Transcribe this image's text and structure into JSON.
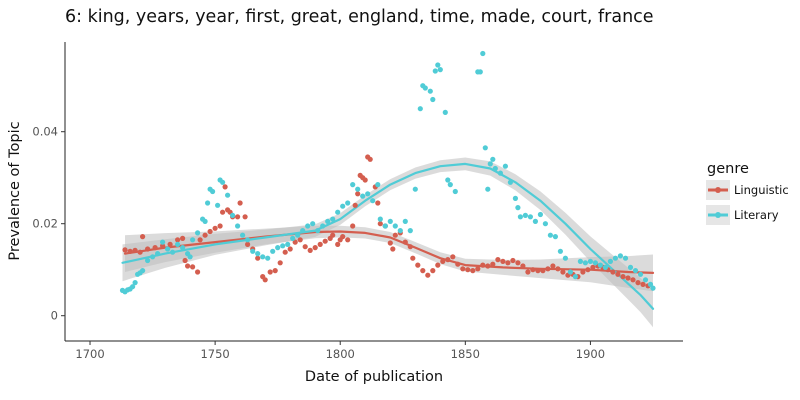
{
  "chart_data": {
    "type": "scatter",
    "title": "6: king, years, year, first, great, england, time, made, court, france",
    "xlabel": "Date of publication",
    "ylabel": "Prevalence of Topic",
    "xlim": [
      1690,
      1937
    ],
    "ylim": [
      -0.0055,
      0.0595
    ],
    "x_ticks": [
      1700,
      1750,
      1800,
      1850,
      1900
    ],
    "y_ticks": [
      0,
      0.02,
      0.04
    ],
    "y_tick_labels": [
      "0",
      "0.02",
      "0.04"
    ],
    "grid": false,
    "legend": {
      "title": "genre",
      "placement": "right",
      "entries": [
        "Linguistic",
        "Literary"
      ]
    },
    "colors": {
      "Linguistic": "#D45E4F",
      "Literary": "#50CCD6",
      "ribbon": "#BDBDBD"
    },
    "series": [
      {
        "name": "Linguistic",
        "points": [
          [
            1714,
            0.0143
          ],
          [
            1716,
            0.014
          ],
          [
            1718,
            0.0142
          ],
          [
            1720,
            0.0138
          ],
          [
            1721,
            0.0172
          ],
          [
            1723,
            0.0145
          ],
          [
            1726,
            0.0148
          ],
          [
            1729,
            0.0152
          ],
          [
            1732,
            0.0155
          ],
          [
            1735,
            0.0165
          ],
          [
            1737,
            0.0168
          ],
          [
            1738,
            0.012
          ],
          [
            1739,
            0.0108
          ],
          [
            1741,
            0.0106
          ],
          [
            1743,
            0.0095
          ],
          [
            1744,
            0.0165
          ],
          [
            1746,
            0.0175
          ],
          [
            1748,
            0.0183
          ],
          [
            1750,
            0.019
          ],
          [
            1752,
            0.0195
          ],
          [
            1753,
            0.0225
          ],
          [
            1754,
            0.028
          ],
          [
            1755,
            0.023
          ],
          [
            1756,
            0.0225
          ],
          [
            1757,
            0.0215
          ],
          [
            1759,
            0.0215
          ],
          [
            1760,
            0.0245
          ],
          [
            1762,
            0.0215
          ],
          [
            1763,
            0.0155
          ],
          [
            1765,
            0.0145
          ],
          [
            1767,
            0.0125
          ],
          [
            1769,
            0.0085
          ],
          [
            1770,
            0.0078
          ],
          [
            1772,
            0.0095
          ],
          [
            1774,
            0.0098
          ],
          [
            1776,
            0.0115
          ],
          [
            1778,
            0.0138
          ],
          [
            1780,
            0.0145
          ],
          [
            1782,
            0.016
          ],
          [
            1784,
            0.0165
          ],
          [
            1786,
            0.015
          ],
          [
            1788,
            0.0142
          ],
          [
            1790,
            0.0148
          ],
          [
            1792,
            0.0155
          ],
          [
            1794,
            0.0162
          ],
          [
            1796,
            0.0168
          ],
          [
            1797,
            0.0175
          ],
          [
            1799,
            0.0155
          ],
          [
            1800,
            0.0165
          ],
          [
            1801,
            0.0172
          ],
          [
            1803,
            0.0165
          ],
          [
            1805,
            0.0195
          ],
          [
            1806,
            0.024
          ],
          [
            1807,
            0.0265
          ],
          [
            1808,
            0.0305
          ],
          [
            1809,
            0.03
          ],
          [
            1810,
            0.0295
          ],
          [
            1811,
            0.0345
          ],
          [
            1812,
            0.034
          ],
          [
            1814,
            0.028
          ],
          [
            1815,
            0.0245
          ],
          [
            1816,
            0.02
          ],
          [
            1818,
            0.0195
          ],
          [
            1820,
            0.0158
          ],
          [
            1821,
            0.0145
          ],
          [
            1822,
            0.0175
          ],
          [
            1824,
            0.018
          ],
          [
            1826,
            0.016
          ],
          [
            1828,
            0.015
          ],
          [
            1829,
            0.0125
          ],
          [
            1831,
            0.011
          ],
          [
            1833,
            0.0098
          ],
          [
            1835,
            0.0088
          ],
          [
            1837,
            0.0098
          ],
          [
            1839,
            0.011
          ],
          [
            1841,
            0.0118
          ],
          [
            1843,
            0.0122
          ],
          [
            1845,
            0.0128
          ],
          [
            1847,
            0.0112
          ],
          [
            1849,
            0.0102
          ],
          [
            1851,
            0.01
          ],
          [
            1853,
            0.0098
          ],
          [
            1855,
            0.0102
          ],
          [
            1857,
            0.011
          ],
          [
            1859,
            0.0108
          ],
          [
            1861,
            0.0112
          ],
          [
            1863,
            0.0122
          ],
          [
            1865,
            0.0118
          ],
          [
            1867,
            0.0115
          ],
          [
            1869,
            0.012
          ],
          [
            1871,
            0.0115
          ],
          [
            1873,
            0.0108
          ],
          [
            1875,
            0.0095
          ],
          [
            1877,
            0.01
          ],
          [
            1879,
            0.0098
          ],
          [
            1881,
            0.0098
          ],
          [
            1883,
            0.0102
          ],
          [
            1885,
            0.0108
          ],
          [
            1887,
            0.0102
          ],
          [
            1889,
            0.0095
          ],
          [
            1891,
            0.0088
          ],
          [
            1893,
            0.009
          ],
          [
            1895,
            0.0085
          ],
          [
            1897,
            0.0095
          ],
          [
            1899,
            0.01
          ],
          [
            1901,
            0.0105
          ],
          [
            1903,
            0.0108
          ],
          [
            1905,
            0.0105
          ],
          [
            1907,
            0.01
          ],
          [
            1909,
            0.0095
          ],
          [
            1911,
            0.009
          ],
          [
            1913,
            0.0085
          ],
          [
            1915,
            0.0082
          ],
          [
            1917,
            0.0078
          ],
          [
            1919,
            0.0072
          ],
          [
            1921,
            0.0068
          ],
          [
            1923,
            0.0065
          ]
        ],
        "trend": [
          [
            1714,
            0.0135
          ],
          [
            1730,
            0.0148
          ],
          [
            1750,
            0.016
          ],
          [
            1770,
            0.0172
          ],
          [
            1790,
            0.0182
          ],
          [
            1800,
            0.0183
          ],
          [
            1810,
            0.018
          ],
          [
            1820,
            0.017
          ],
          [
            1830,
            0.0148
          ],
          [
            1840,
            0.0125
          ],
          [
            1850,
            0.011
          ],
          [
            1865,
            0.0105
          ],
          [
            1880,
            0.0102
          ],
          [
            1900,
            0.01
          ],
          [
            1915,
            0.0095
          ],
          [
            1925,
            0.0093
          ]
        ]
      },
      {
        "name": "Literary",
        "points": [
          [
            1713,
            0.0055
          ],
          [
            1714,
            0.0052
          ],
          [
            1715,
            0.0056
          ],
          [
            1716,
            0.0058
          ],
          [
            1717,
            0.0063
          ],
          [
            1718,
            0.0072
          ],
          [
            1719,
            0.009
          ],
          [
            1720,
            0.0093
          ],
          [
            1721,
            0.0098
          ],
          [
            1723,
            0.012
          ],
          [
            1725,
            0.0128
          ],
          [
            1727,
            0.0135
          ],
          [
            1729,
            0.016
          ],
          [
            1731,
            0.0145
          ],
          [
            1733,
            0.0138
          ],
          [
            1735,
            0.0155
          ],
          [
            1737,
            0.0148
          ],
          [
            1739,
            0.0135
          ],
          [
            1740,
            0.0128
          ],
          [
            1741,
            0.0165
          ],
          [
            1743,
            0.018
          ],
          [
            1745,
            0.021
          ],
          [
            1746,
            0.0205
          ],
          [
            1747,
            0.0245
          ],
          [
            1748,
            0.0275
          ],
          [
            1749,
            0.027
          ],
          [
            1751,
            0.024
          ],
          [
            1752,
            0.0295
          ],
          [
            1753,
            0.029
          ],
          [
            1755,
            0.0262
          ],
          [
            1757,
            0.0218
          ],
          [
            1759,
            0.0195
          ],
          [
            1761,
            0.0175
          ],
          [
            1763,
            0.0165
          ],
          [
            1765,
            0.014
          ],
          [
            1767,
            0.0135
          ],
          [
            1769,
            0.0128
          ],
          [
            1771,
            0.0125
          ],
          [
            1773,
            0.014
          ],
          [
            1775,
            0.0148
          ],
          [
            1777,
            0.0152
          ],
          [
            1779,
            0.0155
          ],
          [
            1781,
            0.0168
          ],
          [
            1783,
            0.0175
          ],
          [
            1785,
            0.0185
          ],
          [
            1787,
            0.0195
          ],
          [
            1789,
            0.02
          ],
          [
            1791,
            0.0185
          ],
          [
            1793,
            0.0195
          ],
          [
            1795,
            0.0205
          ],
          [
            1797,
            0.021
          ],
          [
            1799,
            0.0225
          ],
          [
            1801,
            0.0238
          ],
          [
            1803,
            0.0245
          ],
          [
            1805,
            0.0285
          ],
          [
            1807,
            0.0275
          ],
          [
            1809,
            0.026
          ],
          [
            1811,
            0.0265
          ],
          [
            1813,
            0.025
          ],
          [
            1815,
            0.0285
          ],
          [
            1816,
            0.021
          ],
          [
            1818,
            0.0195
          ],
          [
            1820,
            0.0205
          ],
          [
            1822,
            0.0195
          ],
          [
            1824,
            0.0185
          ],
          [
            1826,
            0.0205
          ],
          [
            1828,
            0.0185
          ],
          [
            1830,
            0.0275
          ],
          [
            1832,
            0.045
          ],
          [
            1833,
            0.05
          ],
          [
            1834,
            0.0495
          ],
          [
            1836,
            0.0488
          ],
          [
            1837,
            0.047
          ],
          [
            1838,
            0.0532
          ],
          [
            1839,
            0.0545
          ],
          [
            1840,
            0.0535
          ],
          [
            1842,
            0.0442
          ],
          [
            1843,
            0.0295
          ],
          [
            1844,
            0.0285
          ],
          [
            1846,
            0.027
          ],
          [
            1855,
            0.053
          ],
          [
            1856,
            0.053
          ],
          [
            1857,
            0.057
          ],
          [
            1858,
            0.0365
          ],
          [
            1859,
            0.0275
          ],
          [
            1860,
            0.033
          ],
          [
            1861,
            0.034
          ],
          [
            1862,
            0.032
          ],
          [
            1864,
            0.031
          ],
          [
            1866,
            0.0325
          ],
          [
            1868,
            0.029
          ],
          [
            1870,
            0.0255
          ],
          [
            1871,
            0.0235
          ],
          [
            1872,
            0.0215
          ],
          [
            1874,
            0.0218
          ],
          [
            1876,
            0.0215
          ],
          [
            1878,
            0.0205
          ],
          [
            1880,
            0.022
          ],
          [
            1882,
            0.02
          ],
          [
            1884,
            0.0175
          ],
          [
            1886,
            0.0172
          ],
          [
            1888,
            0.014
          ],
          [
            1890,
            0.0125
          ],
          [
            1892,
            0.0095
          ],
          [
            1894,
            0.0085
          ],
          [
            1896,
            0.0118
          ],
          [
            1898,
            0.0115
          ],
          [
            1900,
            0.0118
          ],
          [
            1902,
            0.0115
          ],
          [
            1904,
            0.011
          ],
          [
            1906,
            0.0105
          ],
          [
            1908,
            0.0118
          ],
          [
            1910,
            0.0125
          ],
          [
            1912,
            0.013
          ],
          [
            1914,
            0.0125
          ],
          [
            1916,
            0.0105
          ],
          [
            1918,
            0.0098
          ],
          [
            1920,
            0.009
          ],
          [
            1922,
            0.0078
          ],
          [
            1924,
            0.0068
          ],
          [
            1925,
            0.006
          ]
        ],
        "trend": [
          [
            1713,
            0.0115
          ],
          [
            1730,
            0.0135
          ],
          [
            1750,
            0.0155
          ],
          [
            1770,
            0.017
          ],
          [
            1790,
            0.0185
          ],
          [
            1800,
            0.021
          ],
          [
            1810,
            0.025
          ],
          [
            1820,
            0.0285
          ],
          [
            1830,
            0.031
          ],
          [
            1840,
            0.0325
          ],
          [
            1850,
            0.033
          ],
          [
            1860,
            0.032
          ],
          [
            1870,
            0.029
          ],
          [
            1880,
            0.025
          ],
          [
            1890,
            0.02
          ],
          [
            1900,
            0.0145
          ],
          [
            1910,
            0.0095
          ],
          [
            1920,
            0.0045
          ],
          [
            1925,
            0.0015
          ]
        ]
      }
    ]
  }
}
